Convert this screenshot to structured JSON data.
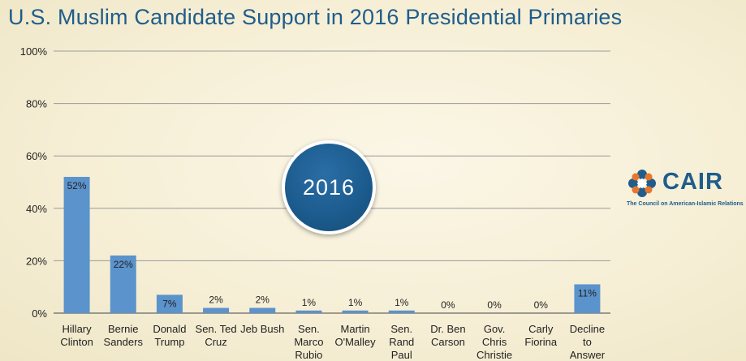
{
  "chart_data": {
    "type": "bar",
    "title": "U.S. Muslim Candidate Support in 2016 Presidential Primaries",
    "categories": [
      [
        "Hillary",
        "Clinton"
      ],
      [
        "Bernie",
        "Sanders"
      ],
      [
        "Donald",
        "Trump"
      ],
      [
        "Sen. Ted",
        "Cruz"
      ],
      [
        "Jeb Bush"
      ],
      [
        "Sen.",
        "Marco",
        "Rubio"
      ],
      [
        "Martin",
        "O'Malley"
      ],
      [
        "Sen.",
        "Rand",
        "Paul"
      ],
      [
        "Dr. Ben",
        "Carson"
      ],
      [
        "Gov.",
        "Chris",
        "Christie"
      ],
      [
        "Carly",
        "Fiorina"
      ],
      [
        "Decline",
        "to",
        "Answer"
      ]
    ],
    "values": [
      52,
      22,
      7,
      2,
      2,
      1,
      1,
      1,
      0,
      0,
      0,
      11
    ],
    "data_labels": [
      "52%",
      "22%",
      "7%",
      "2%",
      "2%",
      "1%",
      "1%",
      "1%",
      "0%",
      "0%",
      "0%",
      "11%"
    ],
    "yticks": [
      "0%",
      "20%",
      "40%",
      "60%",
      "80%",
      "100%"
    ],
    "ylim": [
      0,
      100
    ],
    "grid": true,
    "legend": "none",
    "bar_color": "#5b93cc",
    "xlabel": "",
    "ylabel": ""
  },
  "badge": {
    "text": "2016"
  },
  "logo": {
    "wordmark": "CAIR",
    "tagline": "The Council on American-Islamic Relations"
  },
  "colors": {
    "title": "#1f5d8c",
    "badge": "#1b5a8c",
    "logo_orange": "#e8762c",
    "logo_blue": "#1f5d8c"
  }
}
